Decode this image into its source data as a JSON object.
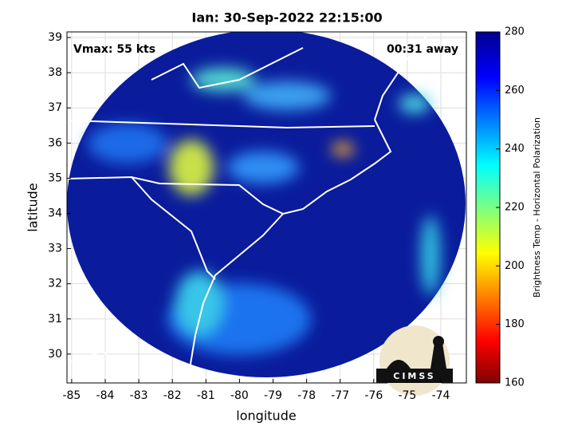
{
  "chart_data": {
    "type": "map",
    "title": "Ian: 30-Sep-2022 22:15:00",
    "xlabel": "longitude",
    "ylabel": "latitude",
    "annotations": [
      "Vmax: 55 kts",
      "00:31 away"
    ],
    "xlim": [
      -85.14,
      -73.24
    ],
    "ylim": [
      29.18,
      39.16
    ],
    "xticks": [
      -85,
      -84,
      -83,
      -82,
      -81,
      -80,
      -79,
      -78,
      -77,
      -76,
      -75,
      -74
    ],
    "yticks": [
      30,
      31,
      32,
      33,
      34,
      35,
      36,
      37,
      38,
      39
    ],
    "grid": true,
    "colorbar": {
      "label": "Brightness Temp - Horizontal Polarization",
      "lim": [
        160,
        280
      ],
      "ticks": [
        160,
        180,
        200,
        220,
        240,
        260,
        280
      ]
    },
    "logo": "CIMSS"
  }
}
